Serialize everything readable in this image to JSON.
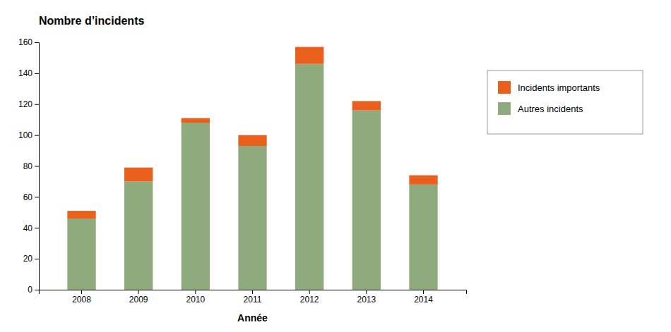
{
  "chart_data": {
    "type": "bar",
    "stacked": true,
    "title": "Nombre d’incidents",
    "xlabel": "Année",
    "categories": [
      "2008",
      "2009",
      "2010",
      "2011",
      "2012",
      "2013",
      "2014"
    ],
    "series": [
      {
        "name": "Autres incidents",
        "color": "#8faa7c",
        "values": [
          46,
          70,
          108,
          93,
          146,
          116,
          68
        ]
      },
      {
        "name": "Incidents importants",
        "color": "#e8601c",
        "values": [
          5,
          9,
          3,
          7,
          11,
          6,
          6
        ]
      }
    ],
    "ylim": [
      0,
      160
    ],
    "yticks": [
      0,
      20,
      40,
      60,
      80,
      100,
      120,
      140,
      160
    ],
    "grid": false,
    "legend": "right"
  }
}
